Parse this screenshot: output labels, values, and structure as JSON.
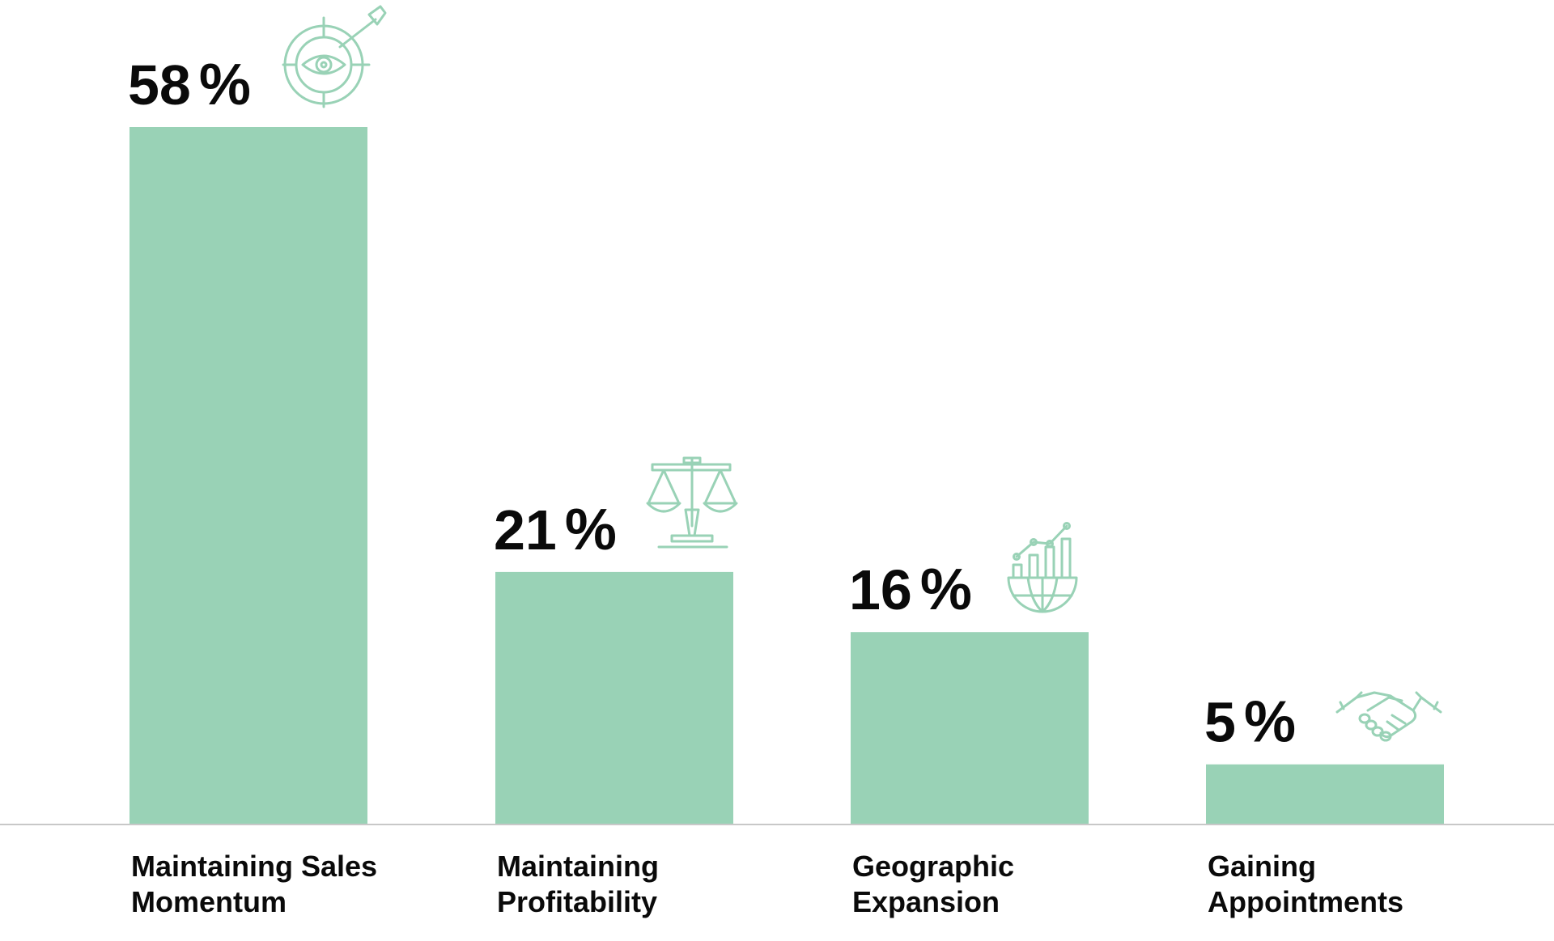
{
  "chart_data": {
    "type": "bar",
    "categories": [
      [
        "Maintaining Sales",
        "Momentum"
      ],
      [
        "Maintaining",
        "Profitability"
      ],
      [
        "Geographic",
        "Expansion"
      ],
      [
        "Gaining",
        "Appointments"
      ]
    ],
    "values": [
      58,
      21,
      16,
      5
    ],
    "value_labels": [
      "58",
      "21",
      "16",
      "5"
    ],
    "value_unit": "%",
    "icons": [
      "target-eye-icon",
      "balance-scale-icon",
      "globe-growth-chart-icon",
      "handshake-icon"
    ],
    "title": "",
    "xlabel": "",
    "ylabel": "",
    "ylim": [
      0,
      58
    ],
    "grid": false,
    "legend": "none",
    "colors": {
      "bar": "#99d2b6",
      "icon": "#99d2b6",
      "text": "#0a0a0a",
      "baseline": "#c8c8c8"
    }
  }
}
